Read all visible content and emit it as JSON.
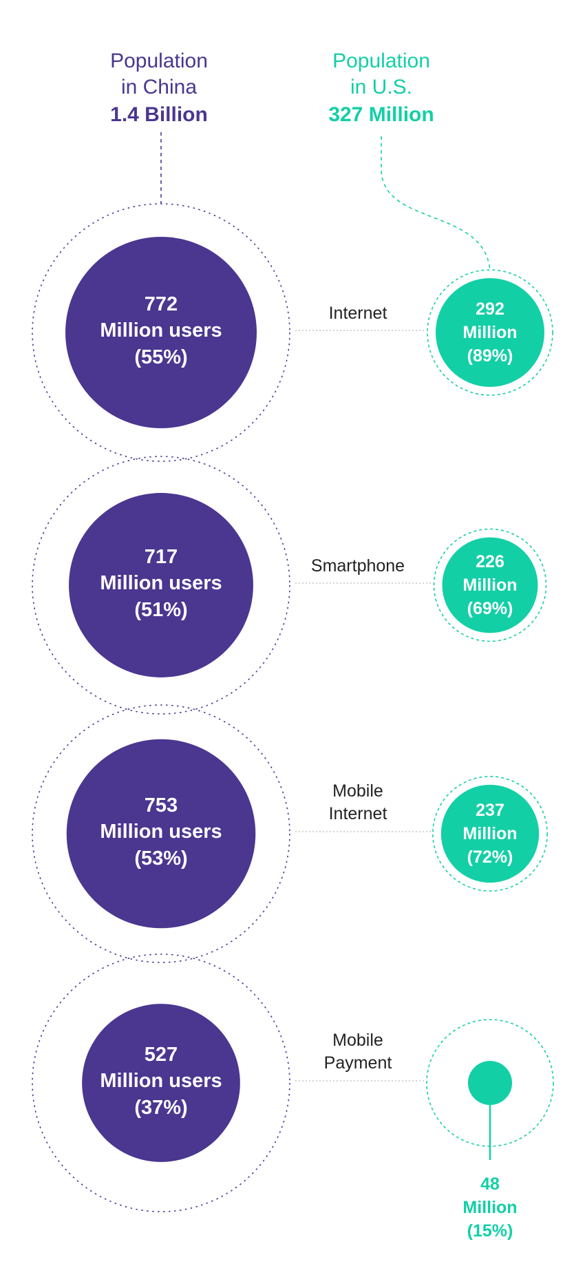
{
  "colors": {
    "china": "#4b3690",
    "us": "#13cfa6",
    "connector": "#b9b9b9",
    "text": "#222222"
  },
  "header": {
    "china": {
      "line1": "Population",
      "line2": "in China",
      "total": "1.4 Billion"
    },
    "us": {
      "line1": "Population",
      "line2": "in U.S.",
      "total": "327 Million"
    }
  },
  "chart_data": {
    "type": "bubble",
    "units": "million users",
    "categories": [
      "Internet",
      "Smartphone",
      "Mobile Internet",
      "Mobile Payment"
    ],
    "population": {
      "China": 1400,
      "U.S.": 327
    },
    "series": [
      {
        "name": "China",
        "values": [
          772,
          717,
          753,
          527
        ],
        "percent": [
          55,
          51,
          53,
          37
        ]
      },
      {
        "name": "U.S.",
        "values": [
          292,
          226,
          237,
          48
        ],
        "percent": [
          89,
          69,
          72,
          15
        ]
      }
    ]
  },
  "rows": [
    {
      "category": [
        "Internet"
      ],
      "china": {
        "value": "772",
        "unit": "Million users",
        "pct": "(55%)"
      },
      "us": {
        "value": "292",
        "unit": "Million",
        "pct": "(89%)"
      }
    },
    {
      "category": [
        "Smartphone"
      ],
      "china": {
        "value": "717",
        "unit": "Million users",
        "pct": "(51%)"
      },
      "us": {
        "value": "226",
        "unit": "Million",
        "pct": "(69%)"
      }
    },
    {
      "category": [
        "Mobile",
        "Internet"
      ],
      "china": {
        "value": "753",
        "unit": "Million users",
        "pct": "(53%)"
      },
      "us": {
        "value": "237",
        "unit": "Million",
        "pct": "(72%)"
      }
    },
    {
      "category": [
        "Mobile",
        "Payment"
      ],
      "china": {
        "value": "527",
        "unit": "Million users",
        "pct": "(37%)"
      },
      "us": {
        "value": "48",
        "unit": "Million",
        "pct": "(15%)"
      }
    }
  ]
}
